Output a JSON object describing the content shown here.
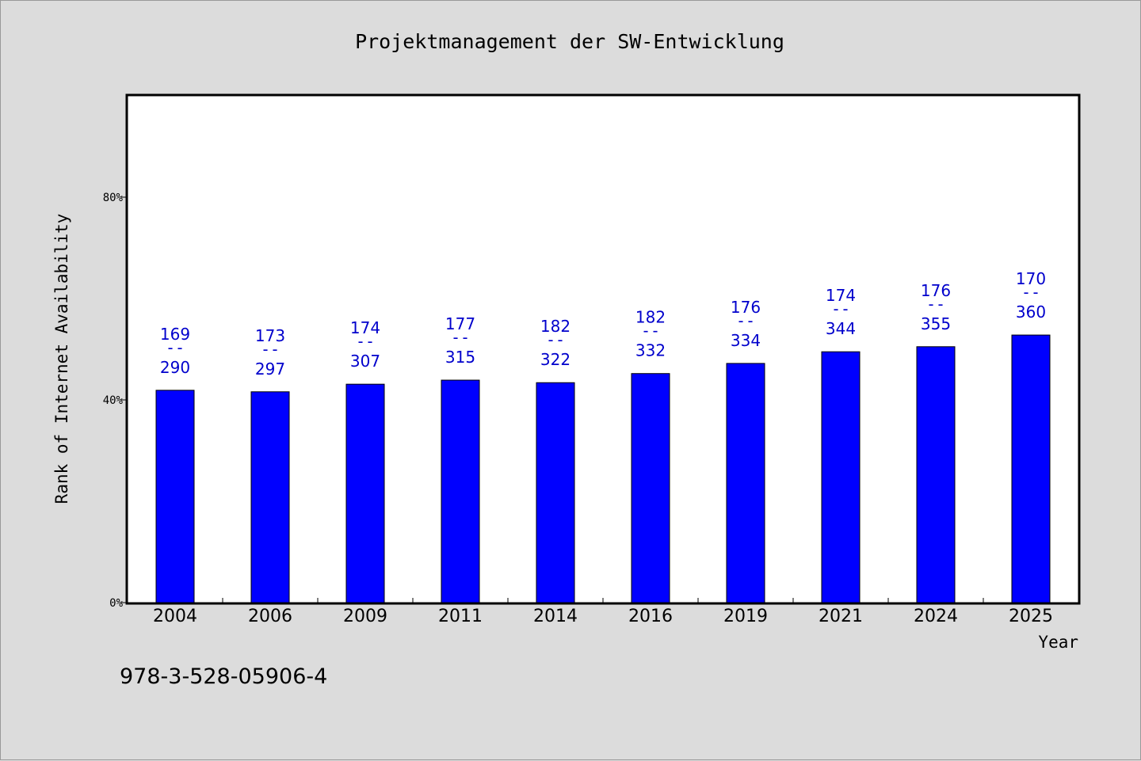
{
  "chart_data": {
    "type": "bar",
    "title": "Projektmanagement der SW-Entwicklung",
    "xlabel": "Year",
    "ylabel": "Rank of Internet Availability",
    "footer_text": "978-3-528-05906-4",
    "categories": [
      "2004",
      "2006",
      "2009",
      "2011",
      "2014",
      "2016",
      "2019",
      "2021",
      "2024",
      "2025"
    ],
    "values": [
      41.9,
      41.6,
      43.1,
      43.9,
      43.4,
      45.2,
      47.2,
      49.5,
      50.5,
      52.8
    ],
    "bar_labels": [
      {
        "top": "169",
        "sep": "--",
        "bottom": "290"
      },
      {
        "top": "173",
        "sep": "--",
        "bottom": "297"
      },
      {
        "top": "174",
        "sep": "--",
        "bottom": "307"
      },
      {
        "top": "177",
        "sep": "--",
        "bottom": "315"
      },
      {
        "top": "182",
        "sep": "--",
        "bottom": "322"
      },
      {
        "top": "182",
        "sep": "--",
        "bottom": "332"
      },
      {
        "top": "176",
        "sep": "--",
        "bottom": "334"
      },
      {
        "top": "174",
        "sep": "--",
        "bottom": "344"
      },
      {
        "top": "176",
        "sep": "--",
        "bottom": "355"
      },
      {
        "top": "170",
        "sep": "--",
        "bottom": "360"
      }
    ],
    "ylim": [
      0,
      100
    ],
    "yticks": [
      {
        "value": 0,
        "label": "0%"
      },
      {
        "value": 40,
        "label": "40%"
      },
      {
        "value": 80,
        "label": "80%"
      }
    ],
    "grid": false,
    "colors": {
      "bar": "#0000ff",
      "bar_label": "#0000cc",
      "plot_background": "#ffffff",
      "page_background": "#dcdcdc"
    }
  }
}
